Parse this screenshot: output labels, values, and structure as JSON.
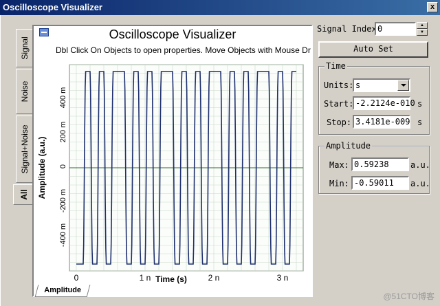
{
  "window": {
    "title": "Oscilloscope Visualizer",
    "close_glyph": "x"
  },
  "tabs": {
    "signal": "Signal",
    "noise": "Noise",
    "signal_noise": "Signal+Noise",
    "all": "All"
  },
  "plot": {
    "title": "Oscilloscope Visualizer",
    "subtitle": "Dbl Click On Objects to open properties.  Move Objects with Mouse Dr",
    "bottom_tab": "Amplitude"
  },
  "chart_data": {
    "type": "line",
    "xlabel": "Time (s)",
    "ylabel": "Amplitude (a.u.)",
    "x_ticks": [
      "0",
      "1 n",
      "2 n",
      "3 n"
    ],
    "x_tick_values": [
      0,
      1e-09,
      2e-09,
      3e-09
    ],
    "y_ticks": [
      "400 m",
      "200 m",
      "0",
      "-200 m",
      "-400 m"
    ],
    "y_tick_values": [
      0.4,
      0.2,
      0,
      -0.2,
      -0.4
    ],
    "xlim": [
      -1e-10,
      3.3e-09
    ],
    "ylim": [
      -0.6,
      0.6
    ],
    "grid": true,
    "bit_period": 1e-10,
    "bits": [
      0,
      1,
      0,
      1,
      0,
      1,
      1,
      0,
      1,
      0,
      1,
      0,
      1,
      1,
      0,
      1,
      0,
      1,
      0,
      1,
      1,
      0,
      1,
      0,
      1,
      0,
      1,
      1,
      0,
      1,
      0,
      1
    ],
    "line_color": "#1e2f6e",
    "grid_color": "#c8d8c8"
  },
  "controls": {
    "signal_index_label": "Signal Index:",
    "signal_index_value": "0",
    "auto_set_label": "Auto Set",
    "time_group": "Time",
    "units_label": "Units:",
    "units_value": "s",
    "start_label": "Start:",
    "start_value": "-2.2124e-010",
    "start_unit": "s",
    "stop_label": "Stop:",
    "stop_value": "3.4181e-009",
    "stop_unit": "s",
    "amplitude_group": "Amplitude",
    "max_label": "Max:",
    "max_value": "0.59238",
    "max_unit": "a.u.",
    "min_label": "Min:",
    "min_value": "-0.59011",
    "min_unit": "a.u."
  },
  "watermark": "@51CTO博客"
}
